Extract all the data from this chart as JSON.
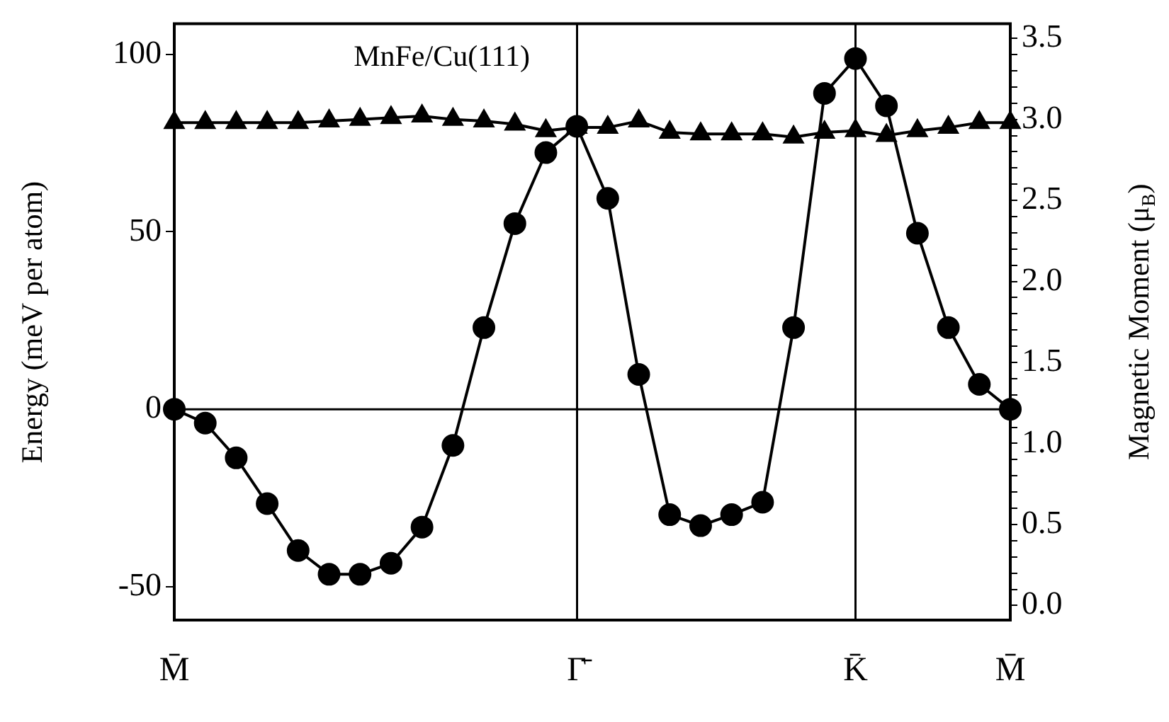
{
  "chart_data": {
    "type": "line",
    "title": "MnFe/Cu(111)",
    "ylabel": "Energy (meV per atom)",
    "y2label": "Magnetic Moment (μ$_{B}$)",
    "categories": [
      "M̄",
      null,
      null,
      null,
      null,
      null,
      null,
      null,
      null,
      null,
      null,
      null,
      null,
      "Γ̄",
      null,
      null,
      null,
      null,
      null,
      null,
      null,
      null,
      "K̄",
      null,
      null,
      null,
      null,
      "M̄"
    ],
    "series": [
      {
        "color": "#000000",
        "marker": "circle",
        "values": [
          0,
          -3.9,
          -13.7,
          -26.6,
          -39.8,
          -46.5,
          -46.5,
          -43.4,
          -33.2,
          -10.2,
          23,
          52.3,
          72.3,
          79.7,
          59.4,
          9.8,
          -29.7,
          -32.8,
          -29.7,
          -26.2,
          23,
          89,
          98.8,
          85.5,
          49.6,
          23,
          7,
          0
        ]
      },
      {
        "color": "#000000",
        "marker": "triangle",
        "axis": "y2",
        "values": [
          2.98,
          2.98,
          2.98,
          2.98,
          2.98,
          2.99,
          3.0,
          3.01,
          3.02,
          3.0,
          2.99,
          2.97,
          2.93,
          2.95,
          2.95,
          2.99,
          2.92,
          2.91,
          2.91,
          2.91,
          2.89,
          2.92,
          2.93,
          2.9,
          2.93,
          2.95,
          2.98,
          2.98
        ]
      }
    ],
    "ylim": [
      -59.4,
      108.6
    ],
    "yticks": [
      -50,
      0,
      50,
      100
    ],
    "y2lim": [
      -0.09,
      3.59
    ],
    "y2ticks": [
      {
        "value": 0,
        "label": "0.0"
      },
      {
        "value": 0.1,
        "label": null
      },
      {
        "value": 0.2,
        "label": null
      },
      {
        "value": 0.3,
        "label": null
      },
      {
        "value": 0.4,
        "label": null
      },
      {
        "value": 0.5,
        "label": "0.5"
      },
      {
        "value": 0.6,
        "label": null
      },
      {
        "value": 0.7,
        "label": null
      },
      {
        "value": 0.8,
        "label": null
      },
      {
        "value": 0.9,
        "label": null
      },
      {
        "value": 1.0,
        "label": "1.0"
      },
      {
        "value": 1.1,
        "label": null
      },
      {
        "value": 1.2,
        "label": null
      },
      {
        "value": 1.3,
        "label": null
      },
      {
        "value": 1.4,
        "label": null
      },
      {
        "value": 1.5,
        "label": "1.5"
      },
      {
        "value": 1.6,
        "label": null
      },
      {
        "value": 1.7,
        "label": null
      },
      {
        "value": 1.8,
        "label": null
      },
      {
        "value": 1.9,
        "label": null
      },
      {
        "value": 2.0,
        "label": "2.0"
      },
      {
        "value": 2.1,
        "label": null
      },
      {
        "value": 2.2,
        "label": null
      },
      {
        "value": 2.3,
        "label": null
      },
      {
        "value": 2.4,
        "label": null
      },
      {
        "value": 2.5,
        "label": "2.5"
      },
      {
        "value": 2.6,
        "label": null
      },
      {
        "value": 2.7,
        "label": null
      },
      {
        "value": 2.8,
        "label": null
      },
      {
        "value": 2.9,
        "label": null
      },
      {
        "value": 3.0,
        "label": "3.0"
      },
      {
        "value": 3.1,
        "label": null
      },
      {
        "value": 3.2,
        "label": null
      },
      {
        "value": 3.3,
        "label": null
      },
      {
        "value": 3.4,
        "label": null
      },
      {
        "value": 3.5,
        "label": "3.5"
      }
    ],
    "ref_lines": [
      {
        "axis": "y",
        "value": 0
      }
    ],
    "grid": "x",
    "legend": false,
    "line_style": "solid"
  }
}
